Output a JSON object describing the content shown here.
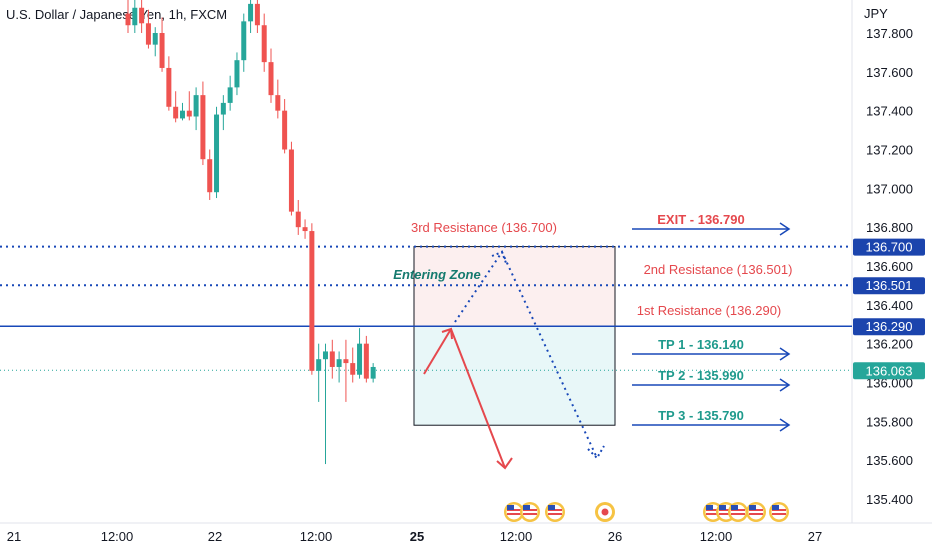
{
  "header": {
    "symbol": "U.S. Dollar / Japanese Yen, 1h, FXCM"
  },
  "chart_data": {
    "type": "candlestick",
    "y_unit_label": "JPY",
    "ylim": [
      135.3,
      137.95
    ],
    "yticks": [
      "137.800",
      "137.600",
      "137.400",
      "137.200",
      "137.000",
      "136.800",
      "136.600",
      "136.400",
      "136.200",
      "136.000",
      "135.800",
      "135.600",
      "135.400"
    ],
    "xticks": [
      {
        "label": "21",
        "bold": false
      },
      {
        "label": "12:00",
        "bold": false
      },
      {
        "label": "22",
        "bold": false
      },
      {
        "label": "12:00",
        "bold": false
      },
      {
        "label": "25",
        "bold": true
      },
      {
        "label": "12:00",
        "bold": false
      },
      {
        "label": "26",
        "bold": false
      },
      {
        "label": "12:00",
        "bold": false
      },
      {
        "label": "27",
        "bold": false
      }
    ],
    "colors": {
      "up": "#26a69a",
      "down": "#ef5350",
      "blue": "#1848b8",
      "red_text": "#e5484d",
      "teal_text": "#1e9a8c"
    },
    "candles": [
      {
        "o": 137.9,
        "h": 138.0,
        "l": 137.8,
        "c": 137.84
      },
      {
        "o": 137.84,
        "h": 137.97,
        "l": 137.8,
        "c": 137.93
      },
      {
        "o": 137.93,
        "h": 137.98,
        "l": 137.8,
        "c": 137.85
      },
      {
        "o": 137.85,
        "h": 137.92,
        "l": 137.72,
        "c": 137.74
      },
      {
        "o": 137.74,
        "h": 137.83,
        "l": 137.68,
        "c": 137.8
      },
      {
        "o": 137.8,
        "h": 137.88,
        "l": 137.6,
        "c": 137.62
      },
      {
        "o": 137.62,
        "h": 137.68,
        "l": 137.4,
        "c": 137.42
      },
      {
        "o": 137.42,
        "h": 137.5,
        "l": 137.34,
        "c": 137.36
      },
      {
        "o": 137.36,
        "h": 137.44,
        "l": 137.35,
        "c": 137.4
      },
      {
        "o": 137.4,
        "h": 137.5,
        "l": 137.35,
        "c": 137.37
      },
      {
        "o": 137.37,
        "h": 137.52,
        "l": 137.3,
        "c": 137.48
      },
      {
        "o": 137.48,
        "h": 137.55,
        "l": 137.12,
        "c": 137.15
      },
      {
        "o": 137.15,
        "h": 137.2,
        "l": 136.94,
        "c": 136.98
      },
      {
        "o": 136.98,
        "h": 137.42,
        "l": 136.95,
        "c": 137.38
      },
      {
        "o": 137.38,
        "h": 137.48,
        "l": 137.3,
        "c": 137.44
      },
      {
        "o": 137.44,
        "h": 137.58,
        "l": 137.4,
        "c": 137.52
      },
      {
        "o": 137.52,
        "h": 137.7,
        "l": 137.48,
        "c": 137.66
      },
      {
        "o": 137.66,
        "h": 137.9,
        "l": 137.6,
        "c": 137.86
      },
      {
        "o": 137.86,
        "h": 138.0,
        "l": 137.8,
        "c": 137.95
      },
      {
        "o": 137.95,
        "h": 138.05,
        "l": 137.8,
        "c": 137.84
      },
      {
        "o": 137.84,
        "h": 137.9,
        "l": 137.6,
        "c": 137.65
      },
      {
        "o": 137.65,
        "h": 137.72,
        "l": 137.44,
        "c": 137.48
      },
      {
        "o": 137.48,
        "h": 137.56,
        "l": 137.36,
        "c": 137.4
      },
      {
        "o": 137.4,
        "h": 137.46,
        "l": 137.18,
        "c": 137.2
      },
      {
        "o": 137.2,
        "h": 137.24,
        "l": 136.86,
        "c": 136.88
      },
      {
        "o": 136.88,
        "h": 136.94,
        "l": 136.76,
        "c": 136.8
      },
      {
        "o": 136.8,
        "h": 136.84,
        "l": 136.74,
        "c": 136.78
      },
      {
        "o": 136.78,
        "h": 136.82,
        "l": 136.04,
        "c": 136.06
      },
      {
        "o": 136.06,
        "h": 136.2,
        "l": 135.9,
        "c": 136.12
      },
      {
        "o": 136.12,
        "h": 136.2,
        "l": 135.58,
        "c": 136.16
      },
      {
        "o": 136.16,
        "h": 136.22,
        "l": 136.02,
        "c": 136.08
      },
      {
        "o": 136.08,
        "h": 136.16,
        "l": 136.0,
        "c": 136.12
      },
      {
        "o": 136.12,
        "h": 136.22,
        "l": 135.9,
        "c": 136.1
      },
      {
        "o": 136.1,
        "h": 136.18,
        "l": 136.0,
        "c": 136.04
      },
      {
        "o": 136.04,
        "h": 136.28,
        "l": 136.02,
        "c": 136.2
      },
      {
        "o": 136.2,
        "h": 136.24,
        "l": 136.0,
        "c": 136.02
      },
      {
        "o": 136.02,
        "h": 136.1,
        "l": 136.0,
        "c": 136.08
      }
    ],
    "levels": [
      {
        "price": 136.7,
        "label": "136.700",
        "style": "dotted"
      },
      {
        "price": 136.501,
        "label": "136.501",
        "style": "dotted"
      },
      {
        "price": 136.29,
        "label": "136.290",
        "style": "solid"
      },
      {
        "price": 136.063,
        "label": "136.063",
        "style": "current"
      }
    ],
    "annotations": {
      "res3": "3rd Resistance (136.700)",
      "res2": "2nd Resistance (136.501)",
      "res1": "1st Resistance (136.290)",
      "exit": "EXIT - 136.790",
      "tp1": "TP 1 - 136.140",
      "tp2": "TP 2 - 135.990",
      "tp3": "TP 3 - 135.790",
      "zone": "Entering Zone"
    },
    "zone_box": {
      "top": 136.7,
      "mid": 136.29,
      "bottom": 135.78
    },
    "event_icons": [
      "US",
      "US",
      "US",
      "JP",
      "US",
      "US",
      "US",
      "US",
      "US"
    ]
  }
}
